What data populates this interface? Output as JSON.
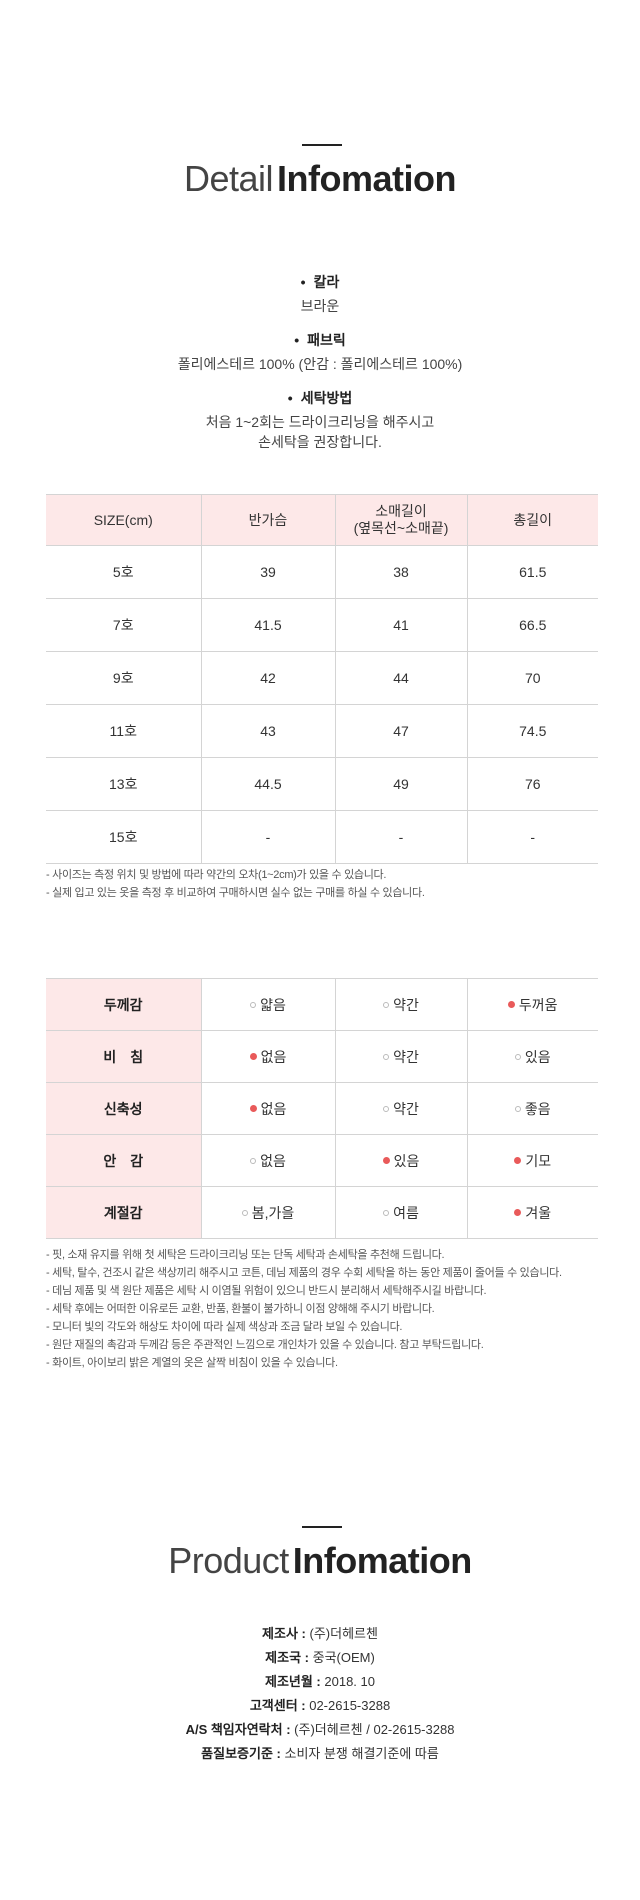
{
  "detail_title": {
    "light": "Detail",
    "bold": "Infomation"
  },
  "specs": [
    {
      "label": "칼라",
      "lines": [
        "브라운"
      ]
    },
    {
      "label": "패브릭",
      "lines": [
        "폴리에스테르 100% (안감 : 폴리에스테르 100%)"
      ]
    },
    {
      "label": "세탁방법",
      "lines": [
        "처음 1~2회는 드라이크리닝을 해주시고",
        "손세탁을 권장합니다."
      ]
    }
  ],
  "size_table": {
    "headers": [
      "SIZE(cm)",
      "반가슴",
      "소매길이\n(옆목선~소매끝)",
      "총길이"
    ],
    "rows": [
      [
        "5호",
        "39",
        "38",
        "61.5"
      ],
      [
        "7호",
        "41.5",
        "41",
        "66.5"
      ],
      [
        "9호",
        "42",
        "44",
        "70"
      ],
      [
        "11호",
        "43",
        "47",
        "74.5"
      ],
      [
        "13호",
        "44.5",
        "49",
        "76"
      ],
      [
        "15호",
        "-",
        "-",
        "-"
      ]
    ]
  },
  "size_notes": [
    "- 사이즈는 측정 위치 및 방법에 따라 약간의 오차(1~2cm)가 있을 수 있습니다.",
    "- 실제 입고 있는 옷을 측정 후 비교하여 구매하시면 실수 없는 구매를 하실 수 있습니다."
  ],
  "properties": [
    {
      "name": "두께감",
      "options": [
        {
          "label": "얇음",
          "on": false
        },
        {
          "label": "약간",
          "on": false
        },
        {
          "label": "두꺼움",
          "on": true
        }
      ]
    },
    {
      "name": "비　침",
      "options": [
        {
          "label": "없음",
          "on": true
        },
        {
          "label": "약간",
          "on": false
        },
        {
          "label": "있음",
          "on": false
        }
      ]
    },
    {
      "name": "신축성",
      "options": [
        {
          "label": "없음",
          "on": true
        },
        {
          "label": "약간",
          "on": false
        },
        {
          "label": "좋음",
          "on": false
        }
      ]
    },
    {
      "name": "안　감",
      "options": [
        {
          "label": "없음",
          "on": false
        },
        {
          "label": "있음",
          "on": true
        },
        {
          "label": "기모",
          "on": true
        }
      ]
    },
    {
      "name": "계절감",
      "options": [
        {
          "label": "봄,가을",
          "on": false
        },
        {
          "label": "여름",
          "on": false
        },
        {
          "label": "겨울",
          "on": true
        }
      ]
    }
  ],
  "care_notes": [
    "- 핏, 소재 유지를 위해 첫 세탁은 드라이크리닝 또는 단독 세탁과 손세탁을 추천해 드립니다.",
    "- 세탁, 탈수, 건조시 같은 색상끼리 해주시고 코튼, 데님 제품의 경우 수회 세탁을 하는 동안 제품이 줄어들 수 있습니다.",
    "- 데님 제품 및 색 원단 제품은 세탁 시 이염될 위험이 있으니 반드시 분리해서 세탁해주시길 바랍니다.",
    "- 세탁 후에는 어떠한 이유로든 교환, 반품, 환불이 불가하니 이점 양해해 주시기 바랍니다.",
    "- 모니터 빛의 각도와 해상도 차이에 따라 실제 색상과 조금 달라 보일 수 있습니다.",
    "- 원단 재질의 촉감과 두께감 등은 주관적인 느낌으로 개인차가 있을 수 있습니다. 참고 부탁드립니다.",
    "- 화이트, 아이보리 밝은 계열의 옷은 살짝 비침이 있을 수 있습니다."
  ],
  "product_title": {
    "light": "Product",
    "bold": "Infomation"
  },
  "product_info": [
    {
      "k": "제조사 : ",
      "v": "(주)더헤르첸"
    },
    {
      "k": "제조국 : ",
      "v": "중국(OEM)"
    },
    {
      "k": "제조년월 : ",
      "v": "2018. 10"
    },
    {
      "k": "고객센터 : ",
      "v": "02-2615-3288"
    },
    {
      "k": "A/S 책임자연락처 : ",
      "v": "(주)더헤르첸 / 02-2615-3288"
    },
    {
      "k": "품질보증기준 : ",
      "v": "소비자 분쟁 해결기준에 따름"
    }
  ]
}
